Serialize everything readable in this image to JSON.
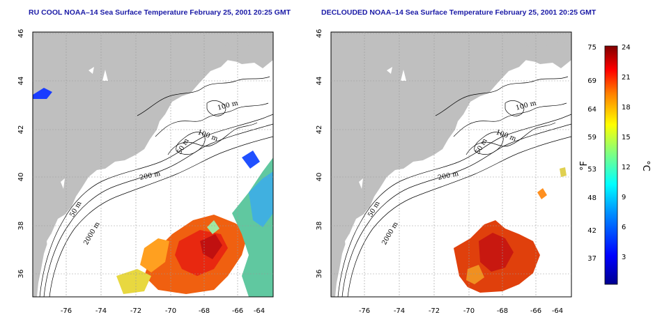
{
  "maps": [
    {
      "title": "RU COOL NOAA–14 Sea Surface Temperature February 25, 2001 20:25 GMT",
      "lon_ticks": [
        "-76",
        "-74",
        "-72",
        "-70",
        "-68",
        "-66",
        "-64"
      ],
      "lat_ticks": [
        "46",
        "44",
        "42",
        "40",
        "38",
        "36"
      ],
      "contours": [
        "100 m",
        "100 m",
        "50 m",
        "200 m",
        "50 m",
        "2000 m"
      ]
    },
    {
      "title": "DECLOUDED NOAA–14 Sea Surface Temperature February 25, 2001 20:25 GMT",
      "lon_ticks": [
        "-76",
        "-74",
        "-72",
        "-70",
        "-68",
        "-66",
        "-64"
      ],
      "lat_ticks": [
        "46",
        "44",
        "42",
        "40",
        "38",
        "36"
      ],
      "contours": [
        "100 m",
        "100 m",
        "50 m",
        "200 m",
        "50 m",
        "2000 m"
      ]
    }
  ],
  "colorbar": {
    "fahrenheit_unit": "°F",
    "celsius_unit": "°C",
    "fahrenheit_labels": [
      "75",
      "69",
      "64",
      "59",
      "53",
      "48",
      "42",
      "37"
    ],
    "celsius_labels": [
      "24",
      "21",
      "18",
      "15",
      "12",
      "9",
      "6",
      "3"
    ],
    "colors": [
      "#00008f",
      "#0000ff",
      "#0080ff",
      "#00ffff",
      "#80ff80",
      "#ffff00",
      "#ff8000",
      "#ff0000",
      "#800000"
    ]
  },
  "colors": {
    "land": "#bfbfbf",
    "title": "#1a1aa6"
  }
}
